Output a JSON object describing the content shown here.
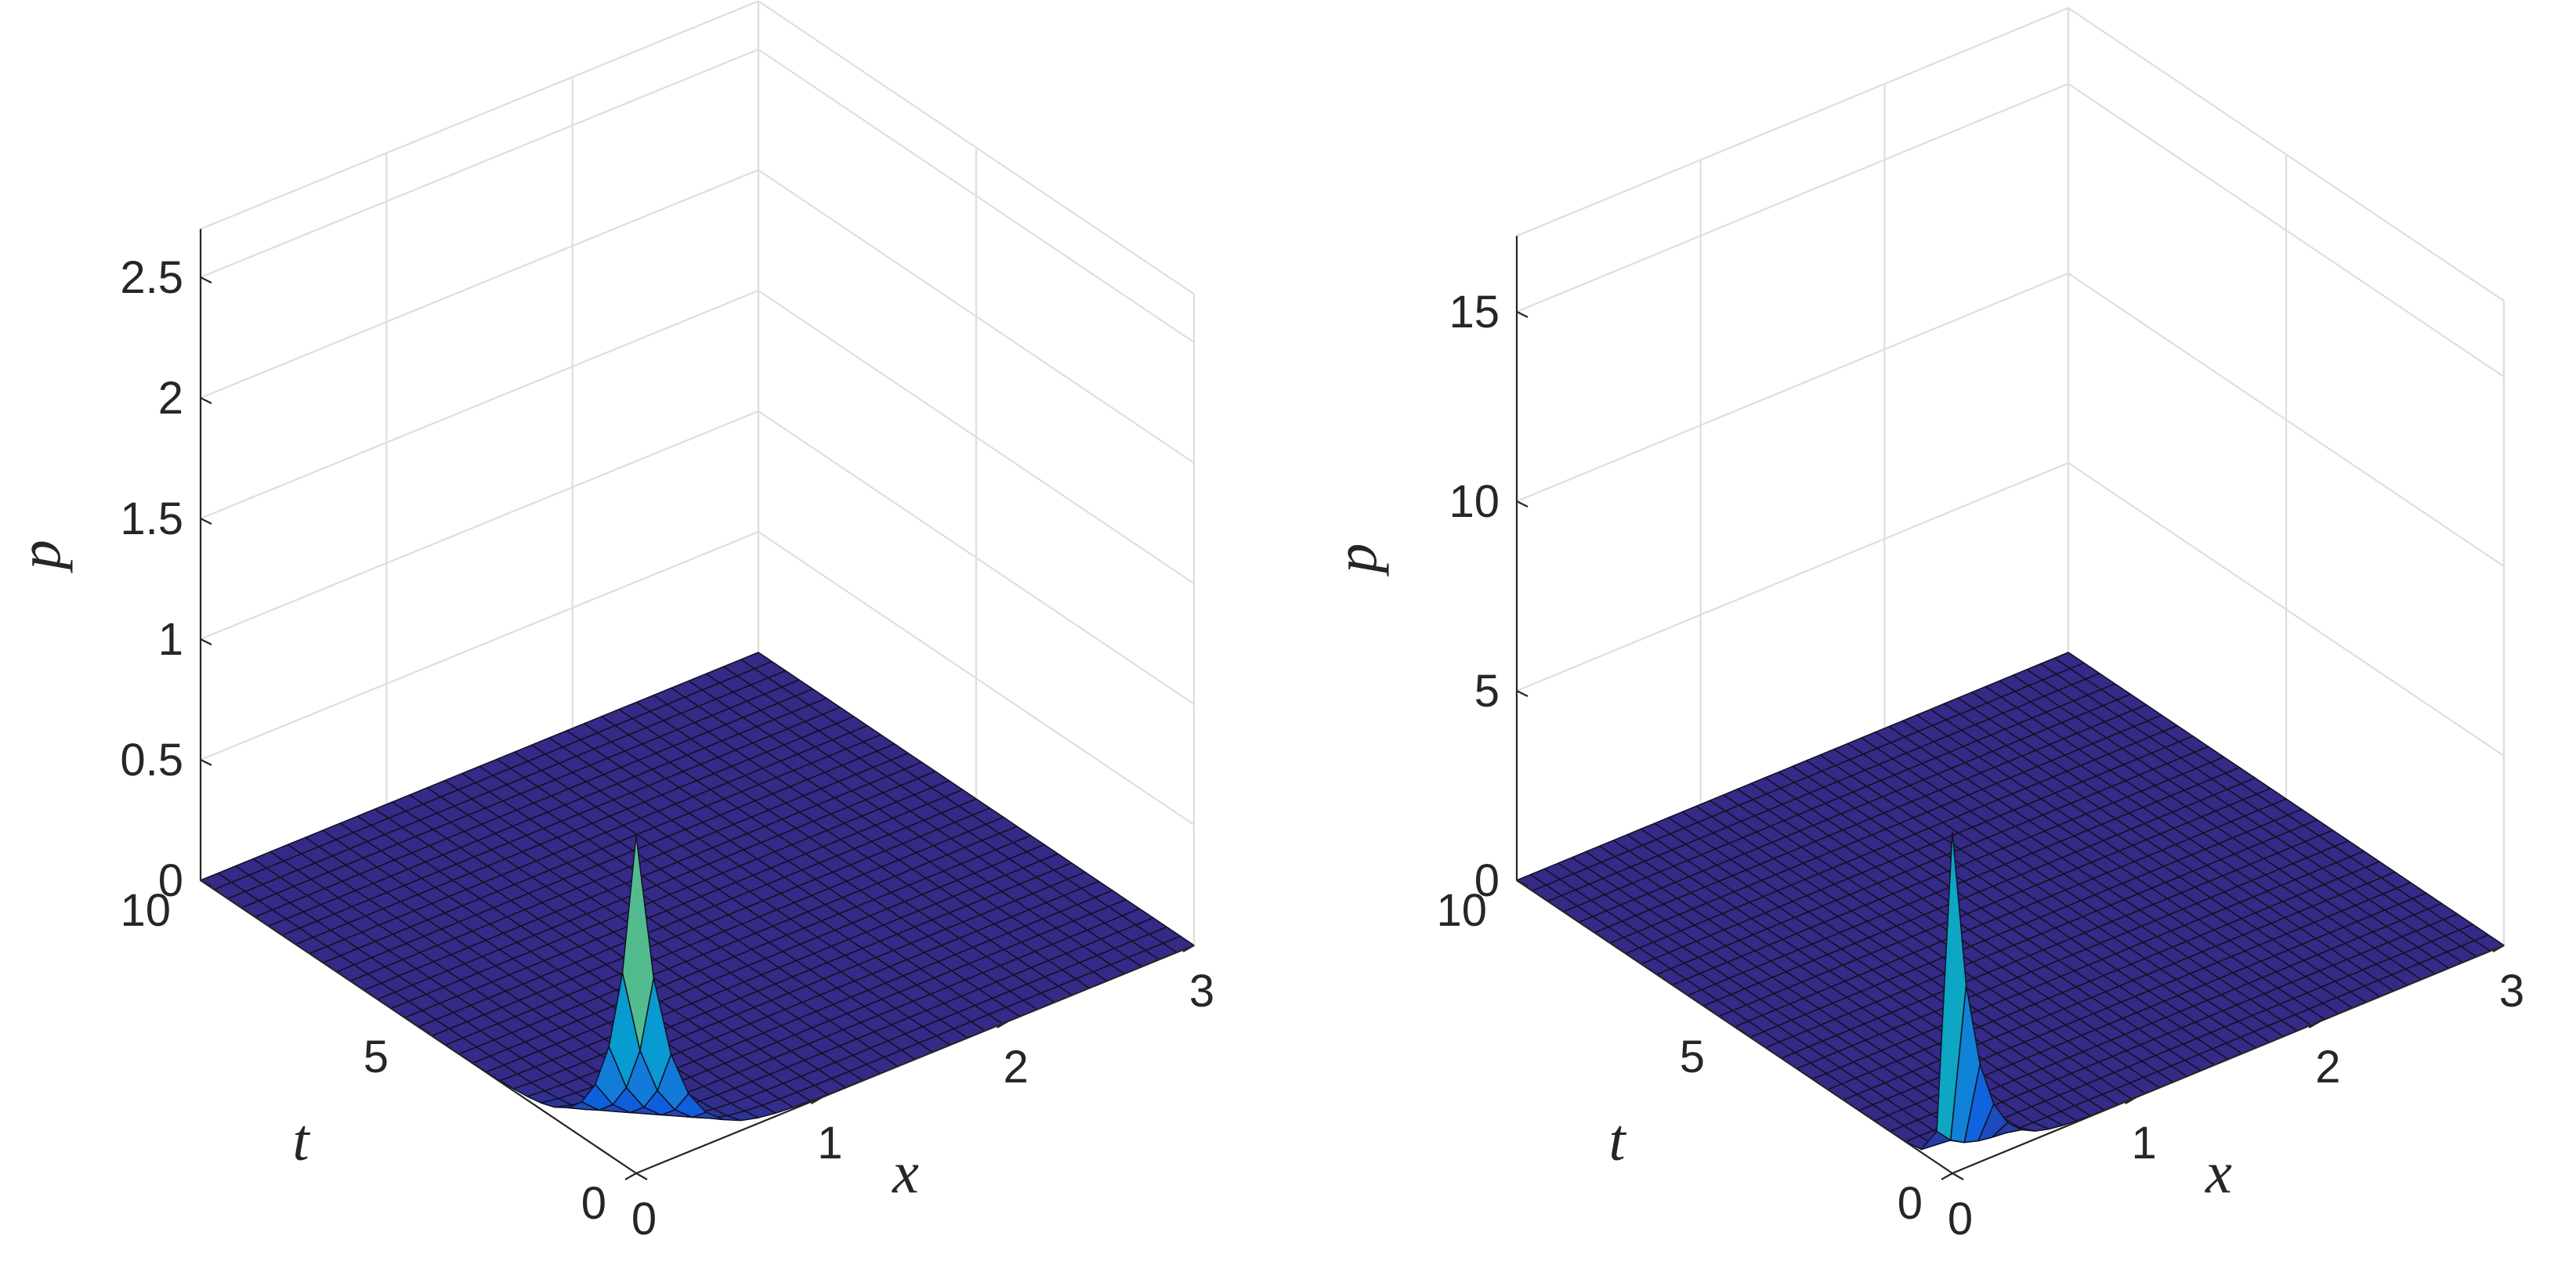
{
  "chart_data": [
    {
      "type": "surface",
      "colormap": "parula",
      "xlabel": "x",
      "ylabel": "t",
      "zlabel": "p",
      "xlim": [
        0,
        3
      ],
      "ylim": [
        0,
        10
      ],
      "zlim": [
        0,
        2.7
      ],
      "xticks": [
        0,
        1,
        2,
        3
      ],
      "yticks": [
        0,
        5,
        10
      ],
      "zticks": [
        0,
        0.5,
        1,
        1.5,
        2,
        2.5
      ],
      "xtick_labels": [
        "0",
        "1",
        "2",
        "3"
      ],
      "ytick_labels": [
        "0",
        "5",
        "10"
      ],
      "ztick_labels": [
        "0",
        "0.5",
        "1",
        "1.5",
        "2",
        "2.5"
      ],
      "grid": true,
      "peak": {
        "x": 0,
        "t": 0,
        "p": 1.4
      },
      "shape": "p(x,t) = 1.4 * exp(-x/0.16 - t/0.55)"
    },
    {
      "type": "surface",
      "colormap": "parula",
      "xlabel": "x",
      "ylabel": "t",
      "zlabel": "p",
      "xlim": [
        0,
        3
      ],
      "ylim": [
        0,
        10
      ],
      "zlim": [
        0,
        17
      ],
      "xticks": [
        0,
        1,
        2,
        3
      ],
      "yticks": [
        0,
        5,
        10
      ],
      "zticks": [
        0,
        5,
        10,
        15
      ],
      "xtick_labels": [
        "0",
        "1",
        "2",
        "3"
      ],
      "ytick_labels": [
        "0",
        "5",
        "10"
      ],
      "ztick_labels": [
        "0",
        "5",
        "10",
        "15"
      ],
      "grid": true,
      "peak": {
        "x": 0,
        "t": 0,
        "p": 9.0
      },
      "shape": "p(x,t) = 9.0 * exp(-x/0.12 - t/0.15)"
    }
  ]
}
